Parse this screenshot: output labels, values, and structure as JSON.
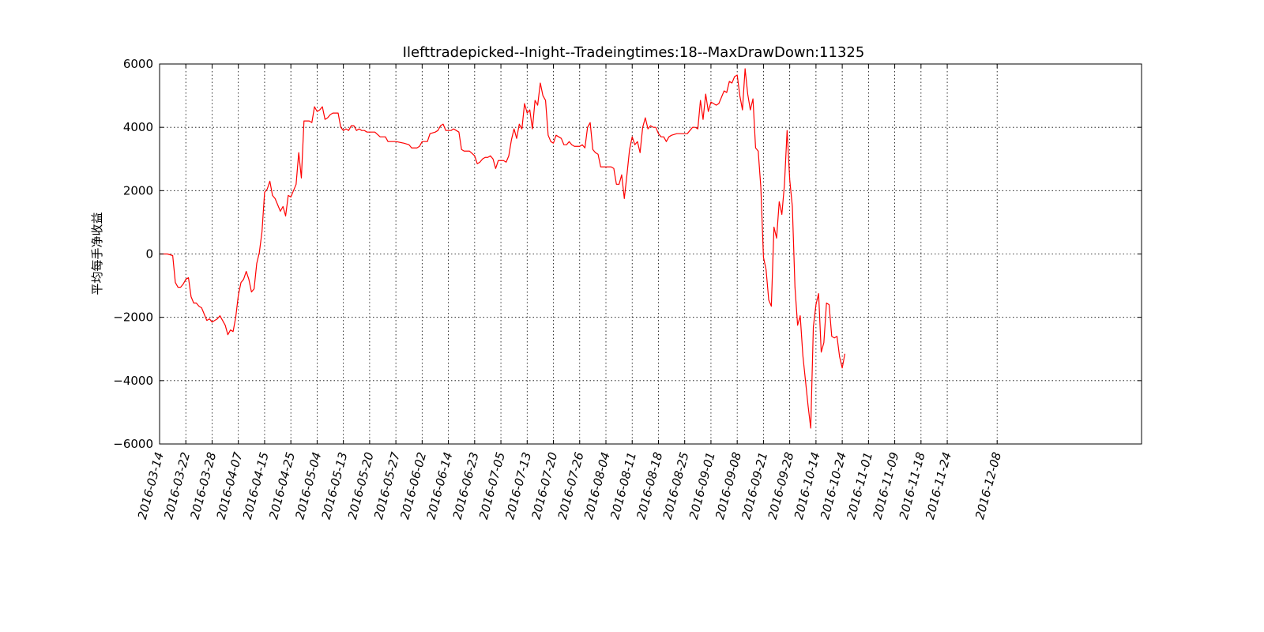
{
  "chart_data": {
    "type": "line",
    "title": "Ilefttradepicked--Inight--Tradeingtimes:18--MaxDrawDown:11325",
    "xlabel": "",
    "ylabel": "平均每手净收益",
    "ylim": [
      -6000,
      6000
    ],
    "xlim": [
      0,
      374
    ],
    "yticks": [
      6000,
      4000,
      2000,
      0,
      -2000,
      -4000,
      -6000
    ],
    "ytick_labels": [
      "6000",
      "4000",
      "2000",
      "0",
      "−2000",
      "−4000",
      "−6000"
    ],
    "xticks": [
      {
        "pos": 0,
        "label": "2016-03-14"
      },
      {
        "pos": 10,
        "label": "2016-03-22"
      },
      {
        "pos": 20,
        "label": "2016-03-28"
      },
      {
        "pos": 30,
        "label": "2016-04-07"
      },
      {
        "pos": 40,
        "label": "2016-04-15"
      },
      {
        "pos": 50,
        "label": "2016-04-25"
      },
      {
        "pos": 60,
        "label": "2016-05-04"
      },
      {
        "pos": 70,
        "label": "2016-05-13"
      },
      {
        "pos": 80,
        "label": "2016-05-20"
      },
      {
        "pos": 90,
        "label": "2016-05-27"
      },
      {
        "pos": 100,
        "label": "2016-06-02"
      },
      {
        "pos": 110,
        "label": "2016-06-14"
      },
      {
        "pos": 120,
        "label": "2016-06-23"
      },
      {
        "pos": 130,
        "label": "2016-07-05"
      },
      {
        "pos": 140,
        "label": "2016-07-13"
      },
      {
        "pos": 150,
        "label": "2016-07-20"
      },
      {
        "pos": 160,
        "label": "2016-07-26"
      },
      {
        "pos": 170,
        "label": "2016-08-04"
      },
      {
        "pos": 180,
        "label": "2016-08-11"
      },
      {
        "pos": 190,
        "label": "2016-08-18"
      },
      {
        "pos": 200,
        "label": "2016-08-25"
      },
      {
        "pos": 210,
        "label": "2016-09-01"
      },
      {
        "pos": 220,
        "label": "2016-09-08"
      },
      {
        "pos": 230,
        "label": "2016-09-21"
      },
      {
        "pos": 240,
        "label": "2016-09-28"
      },
      {
        "pos": 250,
        "label": "2016-10-14"
      },
      {
        "pos": 260,
        "label": "2016-10-24"
      },
      {
        "pos": 270,
        "label": "2016-11-01"
      },
      {
        "pos": 280,
        "label": "2016-11-09"
      },
      {
        "pos": 290,
        "label": "2016-11-18"
      },
      {
        "pos": 300,
        "label": "2016-11-24"
      },
      {
        "pos": 319,
        "label": "2016-12-08"
      }
    ],
    "grid": true,
    "series": [
      {
        "color": "#ff0000",
        "points": [
          [
            0,
            0
          ],
          [
            3,
            0
          ],
          [
            5,
            -50
          ],
          [
            6,
            -900
          ],
          [
            7,
            -1050
          ],
          [
            8,
            -1050
          ],
          [
            9,
            -950
          ],
          [
            10,
            -800
          ],
          [
            11,
            -750
          ],
          [
            12,
            -1350
          ],
          [
            13,
            -1550
          ],
          [
            14,
            -1550
          ],
          [
            15,
            -1650
          ],
          [
            16,
            -1700
          ],
          [
            17,
            -1900
          ],
          [
            18,
            -2100
          ],
          [
            19,
            -2050
          ],
          [
            20,
            -2150
          ],
          [
            21,
            -2100
          ],
          [
            22,
            -2050
          ],
          [
            23,
            -1950
          ],
          [
            24,
            -2100
          ],
          [
            25,
            -2250
          ],
          [
            26,
            -2550
          ],
          [
            27,
            -2400
          ],
          [
            28,
            -2450
          ],
          [
            29,
            -2000
          ],
          [
            30,
            -1300
          ],
          [
            31,
            -900
          ],
          [
            32,
            -800
          ],
          [
            33,
            -550
          ],
          [
            34,
            -800
          ],
          [
            35,
            -1200
          ],
          [
            36,
            -1100
          ],
          [
            37,
            -300
          ],
          [
            38,
            50
          ],
          [
            39,
            700
          ],
          [
            40,
            1950
          ],
          [
            41,
            2050
          ],
          [
            42,
            2300
          ],
          [
            43,
            1850
          ],
          [
            44,
            1750
          ],
          [
            45,
            1550
          ],
          [
            46,
            1350
          ],
          [
            47,
            1500
          ],
          [
            48,
            1200
          ],
          [
            49,
            1850
          ],
          [
            50,
            1800
          ],
          [
            51,
            2000
          ],
          [
            52,
            2200
          ],
          [
            53,
            3200
          ],
          [
            54,
            2400
          ],
          [
            55,
            4200
          ],
          [
            56,
            4200
          ],
          [
            57,
            4200
          ],
          [
            58,
            4150
          ],
          [
            59,
            4650
          ],
          [
            60,
            4500
          ],
          [
            61,
            4550
          ],
          [
            62,
            4650
          ],
          [
            63,
            4250
          ],
          [
            64,
            4300
          ],
          [
            65,
            4400
          ],
          [
            66,
            4450
          ],
          [
            67,
            4450
          ],
          [
            68,
            4450
          ],
          [
            69,
            4000
          ],
          [
            70,
            3900
          ],
          [
            71,
            3950
          ],
          [
            72,
            3900
          ],
          [
            73,
            4050
          ],
          [
            74,
            4050
          ],
          [
            75,
            3900
          ],
          [
            76,
            3950
          ],
          [
            77,
            3900
          ],
          [
            78,
            3900
          ],
          [
            79,
            3850
          ],
          [
            80,
            3850
          ],
          [
            82,
            3850
          ],
          [
            84,
            3700
          ],
          [
            86,
            3700
          ],
          [
            87,
            3550
          ],
          [
            90,
            3550
          ],
          [
            93,
            3500
          ],
          [
            95,
            3450
          ],
          [
            96,
            3350
          ],
          [
            98,
            3350
          ],
          [
            99,
            3400
          ],
          [
            100,
            3550
          ],
          [
            102,
            3550
          ],
          [
            103,
            3800
          ],
          [
            105,
            3850
          ],
          [
            106,
            3900
          ],
          [
            107,
            4050
          ],
          [
            108,
            4100
          ],
          [
            109,
            3900
          ],
          [
            111,
            3900
          ],
          [
            112,
            3950
          ],
          [
            113,
            3900
          ],
          [
            114,
            3850
          ],
          [
            115,
            3300
          ],
          [
            116,
            3250
          ],
          [
            118,
            3250
          ],
          [
            120,
            3100
          ],
          [
            121,
            2850
          ],
          [
            122,
            2900
          ],
          [
            123,
            3000
          ],
          [
            124,
            3050
          ],
          [
            125,
            3050
          ],
          [
            126,
            3100
          ],
          [
            127,
            3000
          ],
          [
            128,
            2700
          ],
          [
            129,
            2950
          ],
          [
            131,
            2950
          ],
          [
            132,
            2900
          ],
          [
            133,
            3100
          ],
          [
            134,
            3600
          ],
          [
            135,
            3950
          ],
          [
            136,
            3650
          ],
          [
            137,
            4100
          ],
          [
            138,
            3950
          ],
          [
            139,
            4750
          ],
          [
            140,
            4450
          ],
          [
            141,
            4550
          ],
          [
            142,
            3950
          ],
          [
            143,
            4850
          ],
          [
            144,
            4700
          ],
          [
            145,
            5400
          ],
          [
            146,
            5000
          ],
          [
            147,
            4850
          ],
          [
            148,
            3750
          ],
          [
            149,
            3550
          ],
          [
            150,
            3500
          ],
          [
            151,
            3750
          ],
          [
            152,
            3700
          ],
          [
            153,
            3650
          ],
          [
            154,
            3450
          ],
          [
            155,
            3450
          ],
          [
            156,
            3550
          ],
          [
            157,
            3450
          ],
          [
            158,
            3400
          ],
          [
            160,
            3400
          ],
          [
            161,
            3450
          ],
          [
            162,
            3350
          ],
          [
            163,
            4000
          ],
          [
            164,
            4150
          ],
          [
            165,
            3300
          ],
          [
            166,
            3200
          ],
          [
            167,
            3150
          ],
          [
            168,
            2750
          ],
          [
            172,
            2750
          ],
          [
            173,
            2700
          ],
          [
            174,
            2200
          ],
          [
            175,
            2200
          ],
          [
            176,
            2500
          ],
          [
            177,
            1750
          ],
          [
            178,
            2500
          ],
          [
            179,
            3300
          ],
          [
            180,
            3700
          ],
          [
            181,
            3450
          ],
          [
            182,
            3550
          ],
          [
            183,
            3200
          ],
          [
            184,
            4000
          ],
          [
            185,
            4300
          ],
          [
            186,
            3950
          ],
          [
            187,
            4050
          ],
          [
            188,
            4000
          ],
          [
            189,
            4000
          ],
          [
            190,
            3800
          ],
          [
            191,
            3700
          ],
          [
            192,
            3700
          ],
          [
            193,
            3550
          ],
          [
            194,
            3700
          ],
          [
            195,
            3750
          ],
          [
            197,
            3800
          ],
          [
            201,
            3800
          ],
          [
            202,
            3900
          ],
          [
            203,
            4000
          ],
          [
            204,
            4000
          ],
          [
            205,
            3950
          ],
          [
            206,
            4850
          ],
          [
            207,
            4250
          ],
          [
            208,
            5050
          ],
          [
            209,
            4500
          ],
          [
            210,
            4800
          ],
          [
            211,
            4750
          ],
          [
            212,
            4700
          ],
          [
            213,
            4750
          ],
          [
            214,
            4950
          ],
          [
            215,
            5150
          ],
          [
            216,
            5100
          ],
          [
            217,
            5450
          ],
          [
            218,
            5400
          ],
          [
            219,
            5600
          ],
          [
            220,
            5650
          ],
          [
            221,
            5000
          ],
          [
            222,
            4550
          ],
          [
            223,
            5850
          ],
          [
            224,
            5050
          ],
          [
            225,
            4550
          ],
          [
            226,
            4900
          ],
          [
            227,
            3350
          ],
          [
            228,
            3250
          ],
          [
            229,
            2100
          ],
          [
            230,
            -100
          ],
          [
            231,
            -500
          ],
          [
            232,
            -1450
          ],
          [
            233,
            -1650
          ],
          [
            234,
            850
          ],
          [
            235,
            500
          ],
          [
            236,
            1650
          ],
          [
            237,
            1250
          ],
          [
            238,
            2200
          ],
          [
            239,
            3900
          ],
          [
            240,
            2350
          ],
          [
            241,
            1500
          ],
          [
            242,
            -1050
          ],
          [
            243,
            -2250
          ],
          [
            244,
            -1950
          ],
          [
            245,
            -3200
          ],
          [
            246,
            -4000
          ],
          [
            247,
            -4800
          ],
          [
            248,
            -5500
          ],
          [
            249,
            -2300
          ],
          [
            250,
            -1600
          ],
          [
            251,
            -1250
          ],
          [
            252,
            -3100
          ],
          [
            253,
            -2800
          ],
          [
            254,
            -1550
          ],
          [
            255,
            -1600
          ],
          [
            256,
            -2600
          ],
          [
            257,
            -2650
          ],
          [
            258,
            -2600
          ],
          [
            259,
            -3250
          ],
          [
            260,
            -3600
          ],
          [
            261,
            -3150
          ]
        ]
      }
    ]
  }
}
